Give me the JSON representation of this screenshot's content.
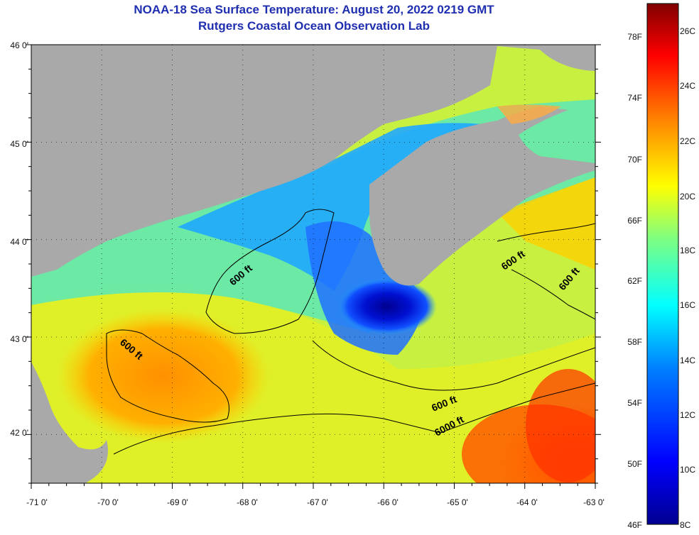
{
  "title": {
    "line1": "NOAA-18 Sea Surface Temperature:  August 20, 2022 0219 GMT",
    "line2": "Rutgers Coastal Ocean Observation Lab"
  },
  "map": {
    "lon_labels": [
      "-71 0'",
      "-70 0'",
      "-69 0'",
      "-68 0'",
      "-67 0'",
      "-66 0'",
      "-65 0'",
      "-64 0'",
      "-63 0'"
    ],
    "lat_labels": [
      "46 0'",
      "45 0'",
      "44 0'",
      "43 0'",
      "42 0'"
    ],
    "lon_range": [
      -71,
      -63
    ],
    "lat_range": [
      41.5,
      46
    ],
    "land_color": "#a9a9a9",
    "contour_labels": [
      "600 ft",
      "600 ft",
      "600 ft",
      "600 ft",
      "600 ft",
      "6000 ft"
    ]
  },
  "colorbar": {
    "f_labels": [
      "78F",
      "74F",
      "70F",
      "66F",
      "62F",
      "58F",
      "54F",
      "50F",
      "46F"
    ],
    "c_labels": [
      "26C",
      "24C",
      "22C",
      "20C",
      "18C",
      "16C",
      "14C",
      "12C",
      "10C",
      "8C"
    ],
    "range_c": [
      8,
      27
    ],
    "colors": [
      "#00008f",
      "#0000ff",
      "#0080ff",
      "#00ffff",
      "#80ff80",
      "#ffff00",
      "#ff8000",
      "#ff0000",
      "#800000"
    ]
  }
}
